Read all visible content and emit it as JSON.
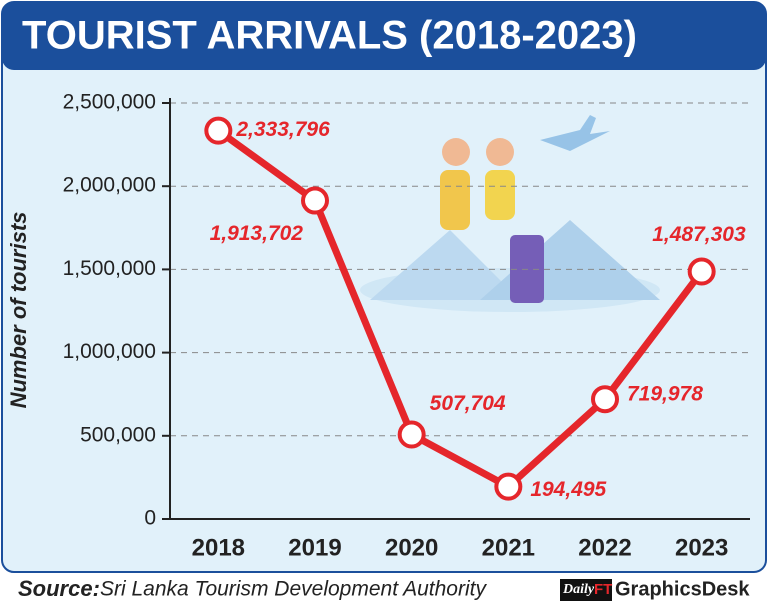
{
  "chart_data": {
    "type": "line",
    "title": "TOURIST ARRIVALS (2018-2023)",
    "y_axis_label": "Number of tourists",
    "categories": [
      "2018",
      "2019",
      "2020",
      "2021",
      "2022",
      "2023"
    ],
    "values": [
      2333796,
      1913702,
      507704,
      194495,
      719978,
      1487303
    ],
    "value_labels": [
      "2,333,796",
      "1,913,702",
      "507,704",
      "194,495",
      "719,978",
      "1,487,303"
    ],
    "color": "#e5262b",
    "ylim": [
      0,
      2500000
    ],
    "yticks": [
      0,
      {
        "value": 500000,
        "label": "500,000"
      },
      {
        "value": 1000000,
        "label": "1,000,000"
      },
      {
        "value": 1500000,
        "label": "1,500,000"
      },
      {
        "value": 2000000,
        "label": "2,000,000"
      },
      {
        "value": 2500000,
        "label": "2,500,000"
      }
    ],
    "grid": true,
    "source_label": "Source:",
    "source": "Sri Lanka Tourism Development Authority",
    "logo": {
      "brand": "Daily",
      "brand_mark": "FT",
      "desk": "GraphicsDesk"
    }
  }
}
